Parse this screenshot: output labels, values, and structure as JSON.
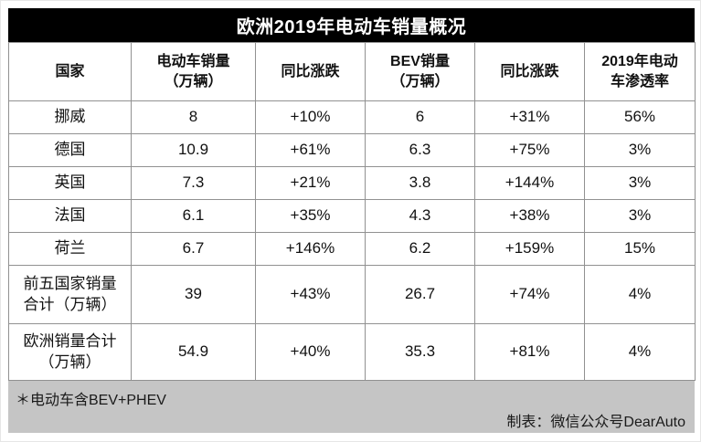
{
  "title": "欧洲2019年电动车销量概况",
  "table": {
    "headers": [
      "国家",
      "电动车销量\n（万辆）",
      "同比涨跌",
      "BEV销量\n（万辆）",
      "同比涨跌",
      "2019年电动\n车渗透率"
    ],
    "rows": [
      [
        "挪威",
        "8",
        "+10%",
        "6",
        "+31%",
        "56%"
      ],
      [
        "德国",
        "10.9",
        "+61%",
        "6.3",
        "+75%",
        "3%"
      ],
      [
        "英国",
        "7.3",
        "+21%",
        "3.8",
        "+144%",
        "3%"
      ],
      [
        "法国",
        "6.1",
        "+35%",
        "4.3",
        "+38%",
        "3%"
      ],
      [
        "荷兰",
        "6.7",
        "+146%",
        "6.2",
        "+159%",
        "15%"
      ],
      [
        "前五国家销量\n合计（万辆）",
        "39",
        "+43%",
        "26.7",
        "+74%",
        "4%"
      ],
      [
        "欧洲销量合计\n（万辆）",
        "54.9",
        "+40%",
        "35.3",
        "+81%",
        "4%"
      ]
    ]
  },
  "footer": {
    "note": "＊电动车含BEV+PHEV",
    "credit": "制表：微信公众号DearAuto"
  },
  "colors": {
    "title_bg": "#000000",
    "title_text": "#ffffff",
    "grid_line": "#919191",
    "footer_bg": "#c5c5c5",
    "body_text": "#111111"
  },
  "chart_data": {
    "type": "table",
    "title": "欧洲2019年电动车销量概况",
    "columns": [
      "国家",
      "电动车销量（万辆）",
      "同比涨跌",
      "BEV销量（万辆）",
      "同比涨跌",
      "2019年电动车渗透率"
    ],
    "rows": [
      {
        "country": "挪威",
        "ev_sales_10k": 8,
        "ev_yoy": "+10%",
        "bev_sales_10k": 6,
        "bev_yoy": "+31%",
        "penetration_2019": "56%"
      },
      {
        "country": "德国",
        "ev_sales_10k": 10.9,
        "ev_yoy": "+61%",
        "bev_sales_10k": 6.3,
        "bev_yoy": "+75%",
        "penetration_2019": "3%"
      },
      {
        "country": "英国",
        "ev_sales_10k": 7.3,
        "ev_yoy": "+21%",
        "bev_sales_10k": 3.8,
        "bev_yoy": "+144%",
        "penetration_2019": "3%"
      },
      {
        "country": "法国",
        "ev_sales_10k": 6.1,
        "ev_yoy": "+35%",
        "bev_sales_10k": 4.3,
        "bev_yoy": "+38%",
        "penetration_2019": "3%"
      },
      {
        "country": "荷兰",
        "ev_sales_10k": 6.7,
        "ev_yoy": "+146%",
        "bev_sales_10k": 6.2,
        "bev_yoy": "+159%",
        "penetration_2019": "15%"
      },
      {
        "country": "前五国家销量合计（万辆）",
        "ev_sales_10k": 39,
        "ev_yoy": "+43%",
        "bev_sales_10k": 26.7,
        "bev_yoy": "+74%",
        "penetration_2019": "4%"
      },
      {
        "country": "欧洲销量合计（万辆）",
        "ev_sales_10k": 54.9,
        "ev_yoy": "+40%",
        "bev_sales_10k": 35.3,
        "bev_yoy": "+81%",
        "penetration_2019": "4%"
      }
    ],
    "notes": [
      "＊电动车含BEV+PHEV",
      "制表：微信公众号DearAuto"
    ]
  }
}
